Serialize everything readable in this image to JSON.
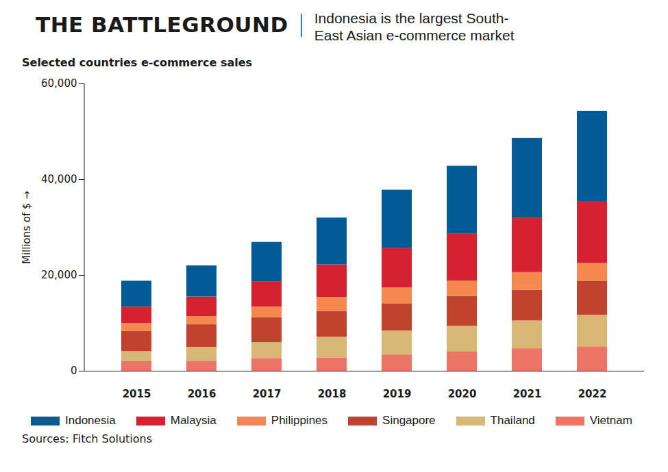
{
  "chart_data": {
    "type": "bar",
    "stacked": true,
    "title": "THE BATTLEGROUND",
    "subtitle": "Indonesia is the largest South-East Asian e-commerce market",
    "plot_title": "Selected countries e-commerce sales",
    "y_label": "Millions of $",
    "source": "Sources: Fitch Solutions",
    "categories": [
      "2015",
      "2016",
      "2017",
      "2018",
      "2019",
      "2020",
      "2021",
      "2022"
    ],
    "series": [
      {
        "name": "Indonesia",
        "color": "#005b97",
        "values": [
          5400,
          6500,
          8300,
          9800,
          12200,
          14100,
          16700,
          19000
        ]
      },
      {
        "name": "Malaysia",
        "color": "#d7212f",
        "values": [
          3400,
          4100,
          5200,
          6800,
          8200,
          9900,
          11300,
          12800
        ]
      },
      {
        "name": "Philippines",
        "color": "#f5884f",
        "values": [
          1700,
          1700,
          2200,
          2900,
          3300,
          3200,
          3700,
          3700
        ]
      },
      {
        "name": "Singapore",
        "color": "#c0432e",
        "values": [
          4200,
          4700,
          5200,
          5400,
          5700,
          6200,
          6400,
          7100
        ]
      },
      {
        "name": "Thailand",
        "color": "#d8b676",
        "values": [
          2100,
          2900,
          3400,
          4300,
          5000,
          5400,
          5800,
          6600
        ]
      },
      {
        "name": "Vietnam",
        "color": "#ec7566",
        "values": [
          2000,
          2100,
          2600,
          2800,
          3400,
          4000,
          4700,
          5100
        ]
      }
    ],
    "ylim": [
      0,
      60000
    ],
    "yticks": [
      0,
      {
        "value": 20000,
        "label": "20,000"
      },
      {
        "value": 40000,
        "label": "40,000"
      },
      {
        "value": 60000,
        "label": "60,000"
      }
    ],
    "grid": false,
    "legend": "bottom"
  }
}
